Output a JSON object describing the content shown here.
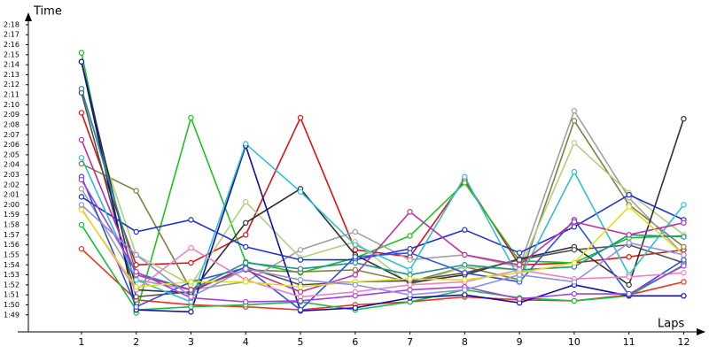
{
  "chart_data": {
    "type": "line",
    "y_label": "Time",
    "x_label": "Laps",
    "x": [
      1,
      2,
      3,
      4,
      5,
      6,
      7,
      8,
      9,
      10,
      11,
      12
    ],
    "xlim": [
      0.03,
      12.3
    ],
    "xticks": [
      1,
      2,
      3,
      4,
      5,
      6,
      7,
      8,
      9,
      10,
      11,
      12
    ],
    "ylim": [
      107.3,
      138.7
    ],
    "yticks": [
      {
        "value": 109,
        "label": "1:49"
      },
      {
        "value": 110,
        "label": "1:50"
      },
      {
        "value": 111,
        "label": "1:51"
      },
      {
        "value": 112,
        "label": "1:52"
      },
      {
        "value": 113,
        "label": "1:53"
      },
      {
        "value": 114,
        "label": "1:54"
      },
      {
        "value": 115,
        "label": "1:55"
      },
      {
        "value": 116,
        "label": "1:56"
      },
      {
        "value": 117,
        "label": "1:57"
      },
      {
        "value": 118,
        "label": "1:58"
      },
      {
        "value": 119,
        "label": "1:59"
      },
      {
        "value": 120,
        "label": "2:00"
      },
      {
        "value": 121,
        "label": "2:01"
      },
      {
        "value": 122,
        "label": "2:02"
      },
      {
        "value": 123,
        "label": "2:03"
      },
      {
        "value": 124,
        "label": "2:04"
      },
      {
        "value": 125,
        "label": "2:05"
      },
      {
        "value": 126,
        "label": "2:06"
      },
      {
        "value": 127,
        "label": "2:07"
      },
      {
        "value": 128,
        "label": "2:08"
      },
      {
        "value": 129,
        "label": "2:09"
      },
      {
        "value": 130,
        "label": "2:10"
      },
      {
        "value": 131,
        "label": "2:11"
      },
      {
        "value": 132,
        "label": "2:12"
      },
      {
        "value": 133,
        "label": "2:13"
      },
      {
        "value": 134,
        "label": "2:14"
      },
      {
        "value": 135,
        "label": "2:15"
      },
      {
        "value": 136,
        "label": "2:16"
      },
      {
        "value": 137,
        "label": "2:17"
      },
      {
        "value": 138,
        "label": "2:18"
      }
    ],
    "series": [
      {
        "color": "#e01010",
        "values": [
          129.2,
          114,
          114.2,
          117,
          128.7,
          115.5,
          114.8,
          122.5,
          114,
          114.2,
          114.8,
          115.5
        ]
      },
      {
        "color": "#f03020",
        "values": [
          115.6,
          110.5,
          110,
          109.8,
          109.5,
          110,
          110.3,
          110.8,
          110.5,
          110.4,
          111,
          112.3
        ]
      },
      {
        "color": "#20c020",
        "values": [
          135.2,
          109.2,
          128.7,
          114.3,
          113.2,
          114.7,
          116.9,
          122.2,
          114.4,
          114.2,
          116.7,
          116.9
        ]
      },
      {
        "color": "#10c040",
        "values": [
          118,
          109.5,
          109.8,
          110,
          110.3,
          109.5,
          110.3,
          111.5,
          110.7,
          110.4,
          110.9,
          114
        ]
      },
      {
        "color": "#808040",
        "values": [
          124.1,
          121.4,
          111.5,
          113.5,
          113.3,
          113.5,
          112.3,
          113.8,
          112.5,
          128.4,
          120,
          115.8
        ]
      },
      {
        "color": "#a0a0a0",
        "values": [
          121.6,
          112.5,
          111.5,
          112.3,
          115.5,
          117.3,
          114.5,
          115,
          113.8,
          129.4,
          120.7,
          115
        ]
      },
      {
        "color": "#b0d080",
        "values": [
          131.3,
          115,
          112,
          120.3,
          114.7,
          116.3,
          112,
          113.8,
          113.5,
          126.2,
          121.2,
          117
        ]
      },
      {
        "color": "#303030",
        "values": [
          134.3,
          111.5,
          111.2,
          118.2,
          121.6,
          115,
          112.2,
          113,
          114.6,
          115.8,
          112,
          128.6
        ]
      },
      {
        "color": "#505050",
        "values": [
          131.2,
          110.8,
          111.3,
          113.8,
          112,
          112.3,
          112.4,
          113.2,
          114.5,
          115.5,
          116,
          114.2
        ]
      },
      {
        "color": "#1010a0",
        "values": [
          134.3,
          109.5,
          109.3,
          125.9,
          109.4,
          109.7,
          110.7,
          111,
          110.2,
          112,
          110.9,
          110.9
        ]
      },
      {
        "color": "#2030d0",
        "values": [
          120.8,
          117.3,
          118.5,
          115.8,
          114.5,
          114.5,
          115.6,
          117.5,
          115.2,
          117.8,
          121,
          118.5
        ]
      },
      {
        "color": "#3050e0",
        "values": [
          122.8,
          109.8,
          112.3,
          113.7,
          109.5,
          114.8,
          115.2,
          113.2,
          112.3,
          118.5,
          111,
          114.5
        ]
      },
      {
        "color": "#30c0d0",
        "values": [
          124.7,
          112.5,
          110.3,
          126.1,
          121.3,
          116,
          113.5,
          122.8,
          112.6,
          123.3,
          113,
          120
        ]
      },
      {
        "color": "#209090",
        "values": [
          131.6,
          113.2,
          111.5,
          114.2,
          113.6,
          114.2,
          113,
          114,
          113.5,
          113.8,
          117,
          116.8
        ]
      },
      {
        "color": "#c030a0",
        "values": [
          126.5,
          113,
          111.5,
          113.5,
          111.3,
          113,
          119.3,
          115,
          114,
          118.3,
          117,
          118.2
        ]
      },
      {
        "color": "#f080c0",
        "values": [
          119.6,
          111.5,
          115.7,
          112.5,
          110.8,
          111.3,
          112,
          112.3,
          113.5,
          112.6,
          112.8,
          113.2
        ]
      },
      {
        "color": "#a040e0",
        "values": [
          122.5,
          113.3,
          110.7,
          110.3,
          110.4,
          110.9,
          111.5,
          111.8,
          110.6,
          111.1,
          111.1,
          113.9
        ]
      },
      {
        "color": "#e0e020",
        "values": [
          119.5,
          111.8,
          112.3,
          112.3,
          111.8,
          112.3,
          112.6,
          112.5,
          113.2,
          114.2,
          119.8,
          115
        ]
      },
      {
        "color": "#9090e0",
        "values": [
          120,
          115,
          110.8,
          113.6,
          112.5,
          112,
          111,
          111.5,
          113,
          112.3,
          116.2,
          115
        ]
      }
    ]
  }
}
